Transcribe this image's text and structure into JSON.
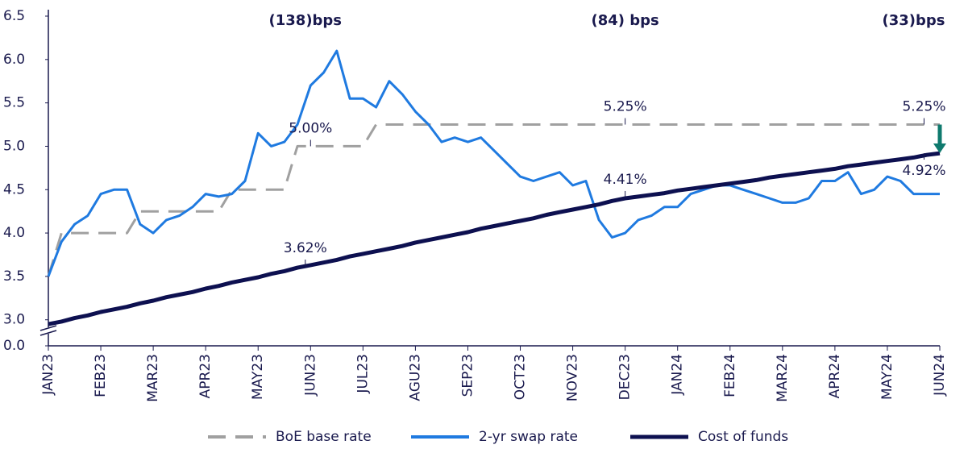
{
  "chart_data": {
    "type": "line",
    "x": [
      0,
      0.25,
      0.5,
      0.75,
      1,
      1.25,
      1.5,
      1.75,
      2,
      2.25,
      2.5,
      2.75,
      3,
      3.25,
      3.5,
      3.75,
      4,
      4.25,
      4.5,
      4.75,
      5,
      5.25,
      5.5,
      5.75,
      6,
      6.25,
      6.5,
      6.75,
      7,
      7.25,
      7.5,
      7.75,
      8,
      8.25,
      8.5,
      8.75,
      9,
      9.25,
      9.5,
      9.75,
      10,
      10.25,
      10.5,
      10.75,
      11,
      11.25,
      11.5,
      11.75,
      12,
      12.25,
      12.5,
      12.75,
      13,
      13.25,
      13.5,
      13.75,
      14,
      14.25,
      14.5,
      14.75,
      15,
      15.25,
      15.5,
      15.75,
      16,
      16.25,
      16.5,
      16.75,
      17
    ],
    "xlim": [
      0,
      17
    ],
    "xticks": [
      {
        "value": 0,
        "label": "JAN23"
      },
      {
        "value": 1,
        "label": "FEB23"
      },
      {
        "value": 2,
        "label": "MAR23"
      },
      {
        "value": 3,
        "label": "APR23"
      },
      {
        "value": 4,
        "label": "MAY23"
      },
      {
        "value": 5,
        "label": "JUN23"
      },
      {
        "value": 6,
        "label": "JUL23"
      },
      {
        "value": 7,
        "label": "AGU23"
      },
      {
        "value": 8,
        "label": "SEP23"
      },
      {
        "value": 9,
        "label": "OCT23"
      },
      {
        "value": 10,
        "label": "NOV23"
      },
      {
        "value": 11,
        "label": "DEC23"
      },
      {
        "value": 12,
        "label": "JAN24"
      },
      {
        "value": 13,
        "label": "FEB24"
      },
      {
        "value": 14,
        "label": "MAR24"
      },
      {
        "value": 15,
        "label": "APR24"
      },
      {
        "value": 16,
        "label": "MAY24"
      },
      {
        "value": 17,
        "label": "JUN24"
      }
    ],
    "ylim": [
      2.7,
      6.5
    ],
    "yticks": [
      {
        "value": 0,
        "label": "0.0"
      },
      {
        "value": 3,
        "label": "3.0"
      },
      3.5,
      {
        "value": 4,
        "label": "4.0"
      },
      4.5,
      {
        "value": 5,
        "label": "5.0"
      },
      5.5,
      {
        "value": 6,
        "label": "6.0"
      },
      6.5
    ],
    "axis_break": true,
    "series": [
      {
        "name": "BoE base rate",
        "color": "#a0a0a0",
        "dashed": true,
        "values": [
          3.5,
          4,
          4,
          4,
          4,
          4,
          4,
          4.25,
          4.25,
          4.25,
          4.25,
          4.25,
          4.25,
          4.25,
          4.5,
          4.5,
          4.5,
          4.5,
          4.5,
          5,
          5,
          5,
          5,
          5,
          5,
          5.25,
          5.25,
          5.25,
          5.25,
          5.25,
          5.25,
          5.25,
          5.25,
          5.25,
          5.25,
          5.25,
          5.25,
          5.25,
          5.25,
          5.25,
          5.25,
          5.25,
          5.25,
          5.25,
          5.25,
          5.25,
          5.25,
          5.25,
          5.25,
          5.25,
          5.25,
          5.25,
          5.25,
          5.25,
          5.25,
          5.25,
          5.25,
          5.25,
          5.25,
          5.25,
          5.25,
          5.25,
          5.25,
          5.25,
          5.25,
          5.25,
          5.25,
          5.25,
          5.25
        ]
      },
      {
        "name": "2-yr swap rate",
        "color": "#1f7ae0",
        "values": [
          3.5,
          3.9,
          4.1,
          4.2,
          4.45,
          4.5,
          4.5,
          4.1,
          4.0,
          4.15,
          4.2,
          4.3,
          4.45,
          4.42,
          4.45,
          4.6,
          5.15,
          5.0,
          5.05,
          5.25,
          5.7,
          5.85,
          6.1,
          5.55,
          5.55,
          5.45,
          5.75,
          5.6,
          5.4,
          5.25,
          5.05,
          5.1,
          5.05,
          5.1,
          4.95,
          4.8,
          4.65,
          4.6,
          4.65,
          4.7,
          4.55,
          4.6,
          4.15,
          3.95,
          4.0,
          4.15,
          4.2,
          4.3,
          4.3,
          4.45,
          4.5,
          4.55,
          4.55,
          4.5,
          4.45,
          4.4,
          4.35,
          4.35,
          4.4,
          4.6,
          4.6,
          4.7,
          4.45,
          4.5,
          4.65,
          4.6,
          4.45,
          4.45,
          4.45
        ]
      },
      {
        "name": "Cost of funds",
        "color": "#0d1050",
        "width": 5,
        "values": [
          2.95,
          2.98,
          3.02,
          3.05,
          3.09,
          3.12,
          3.15,
          3.19,
          3.22,
          3.26,
          3.29,
          3.32,
          3.36,
          3.39,
          3.43,
          3.46,
          3.49,
          3.53,
          3.56,
          3.6,
          3.63,
          3.66,
          3.69,
          3.73,
          3.76,
          3.79,
          3.82,
          3.85,
          3.89,
          3.92,
          3.95,
          3.98,
          4.01,
          4.05,
          4.08,
          4.11,
          4.14,
          4.17,
          4.21,
          4.24,
          4.27,
          4.3,
          4.33,
          4.37,
          4.4,
          4.42,
          4.44,
          4.46,
          4.49,
          4.51,
          4.53,
          4.55,
          4.57,
          4.59,
          4.61,
          4.64,
          4.66,
          4.68,
          4.7,
          4.72,
          4.74,
          4.77,
          4.79,
          4.81,
          4.83,
          4.85,
          4.87,
          4.9,
          4.92
        ]
      }
    ],
    "annotations": [
      {
        "text": "(138)bps",
        "x": 4.9
      },
      {
        "text": "(84) bps",
        "x": 11
      },
      {
        "text": "(33)bps",
        "x": 16.5
      },
      {
        "text": "5.00%",
        "x": 5,
        "y": 5.0,
        "position": "above"
      },
      {
        "text": "5.25%",
        "x": 11,
        "y": 5.25,
        "position": "above"
      },
      {
        "text": "5.25%",
        "x": 16.7,
        "y": 5.25,
        "position": "above"
      },
      {
        "text": "3.62%",
        "x": 4.9,
        "y": 3.62,
        "position": "above"
      },
      {
        "text": "4.41%",
        "x": 11,
        "y": 4.41,
        "position": "above"
      },
      {
        "text": "4.92%",
        "x": 16.7,
        "y": 4.92,
        "position": "below"
      }
    ],
    "arrow": {
      "x": 17,
      "from": 5.25,
      "to": 4.92,
      "color": "#0f7a6e"
    },
    "legend": "bottom"
  }
}
